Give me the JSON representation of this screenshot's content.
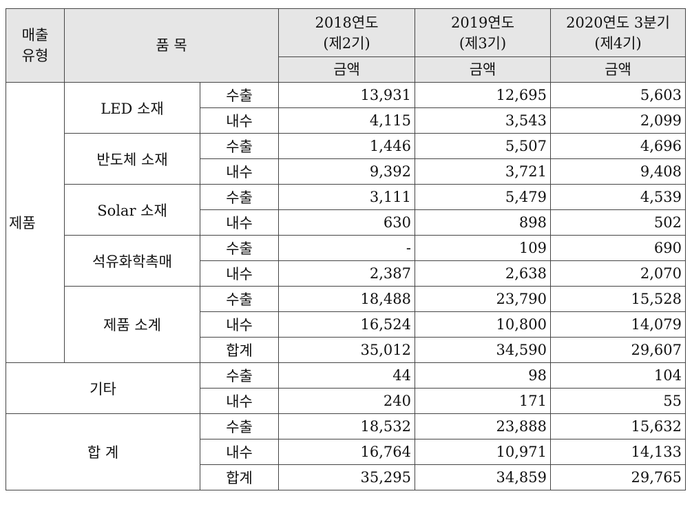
{
  "header": {
    "sales_type": "매출\n유형",
    "item": "품 목",
    "years": [
      {
        "year": "2018연도",
        "term": "(제2기)",
        "sub": "금액"
      },
      {
        "year": "2019연도",
        "term": "(제3기)",
        "sub": "금액"
      },
      {
        "year": "2020연도 3분기",
        "term": "(제4기)",
        "sub": "금액"
      }
    ]
  },
  "category_product": "제품",
  "groups": [
    {
      "name": "LED 소재",
      "rows": [
        {
          "type": "수출",
          "values": [
            "13,931",
            "12,695",
            "5,603"
          ]
        },
        {
          "type": "내수",
          "values": [
            "4,115",
            "3,543",
            "2,099"
          ]
        }
      ]
    },
    {
      "name": "반도체 소재",
      "rows": [
        {
          "type": "수출",
          "values": [
            "1,446",
            "5,507",
            "4,696"
          ]
        },
        {
          "type": "내수",
          "values": [
            "9,392",
            "3,721",
            "9,408"
          ]
        }
      ]
    },
    {
      "name": "Solar 소재",
      "rows": [
        {
          "type": "수출",
          "values": [
            "3,111",
            "5,479",
            "4,539"
          ]
        },
        {
          "type": "내수",
          "values": [
            "630",
            "898",
            "502"
          ]
        }
      ]
    },
    {
      "name": "석유화학촉매",
      "rows": [
        {
          "type": "수출",
          "values": [
            "-",
            "109",
            "690"
          ]
        },
        {
          "type": "내수",
          "values": [
            "2,387",
            "2,638",
            "2,070"
          ]
        }
      ]
    },
    {
      "name": "제품 소계",
      "rows": [
        {
          "type": "수출",
          "values": [
            "18,488",
            "23,790",
            "15,528"
          ]
        },
        {
          "type": "내수",
          "values": [
            "16,524",
            "10,800",
            "14,079"
          ]
        },
        {
          "type": "합계",
          "values": [
            "35,012",
            "34,590",
            "29,607"
          ]
        }
      ]
    }
  ],
  "other": {
    "name": "기타",
    "rows": [
      {
        "type": "수출",
        "values": [
          "44",
          "98",
          "104"
        ]
      },
      {
        "type": "내수",
        "values": [
          "240",
          "171",
          "55"
        ]
      }
    ]
  },
  "total": {
    "name": "합 계",
    "rows": [
      {
        "type": "수출",
        "values": [
          "18,532",
          "23,888",
          "15,632"
        ]
      },
      {
        "type": "내수",
        "values": [
          "16,764",
          "10,971",
          "14,133"
        ]
      },
      {
        "type": "합계",
        "values": [
          "35,295",
          "34,859",
          "29,765"
        ]
      }
    ]
  }
}
